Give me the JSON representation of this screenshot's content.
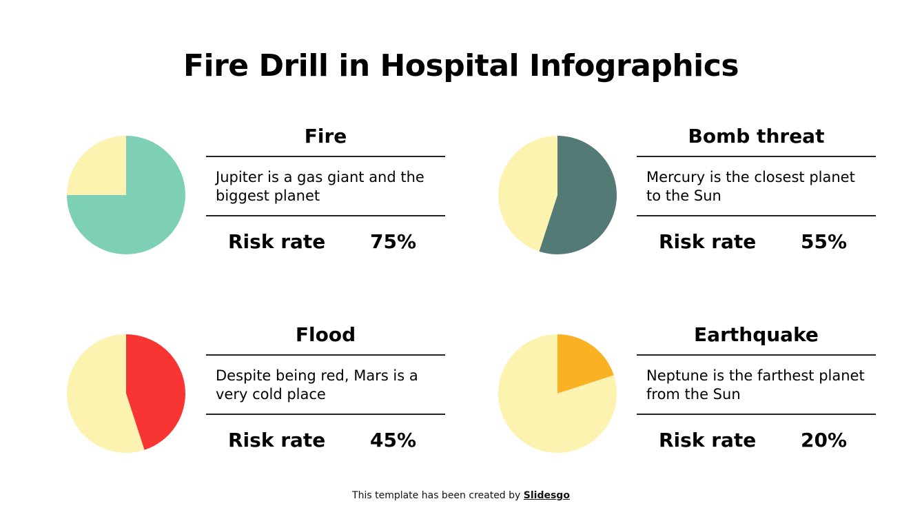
{
  "title": "Fire Drill in Hospital Infographics",
  "risk_label": "Risk rate",
  "credit": {
    "text": "This template has been created by ",
    "link": "Slidesgo"
  },
  "cards": [
    {
      "title": "Fire",
      "description": "Jupiter is a gas giant and the biggest planet",
      "risk_value": "75%"
    },
    {
      "title": "Bomb threat",
      "description": "Mercury is the closest planet to the Sun",
      "risk_value": "55%"
    },
    {
      "title": "Flood",
      "description": "Despite being red, Mars is a very cold place",
      "risk_value": "45%"
    },
    {
      "title": "Earthquake",
      "description": "Neptune is the farthest planet from the Sun",
      "risk_value": "20%"
    }
  ],
  "chart_data": [
    {
      "type": "pie",
      "title": "Fire",
      "values": [
        75,
        25
      ],
      "colors": [
        "#7dcfb6",
        "#fcf3b0"
      ]
    },
    {
      "type": "pie",
      "title": "Bomb threat",
      "values": [
        55,
        45
      ],
      "colors": [
        "#537a74",
        "#fcf3b0"
      ]
    },
    {
      "type": "pie",
      "title": "Flood",
      "values": [
        45,
        55
      ],
      "colors": [
        "#f93534",
        "#fcf3b0"
      ]
    },
    {
      "type": "pie",
      "title": "Earthquake",
      "values": [
        20,
        80
      ],
      "colors": [
        "#fbb124",
        "#fcf3b0"
      ]
    }
  ]
}
